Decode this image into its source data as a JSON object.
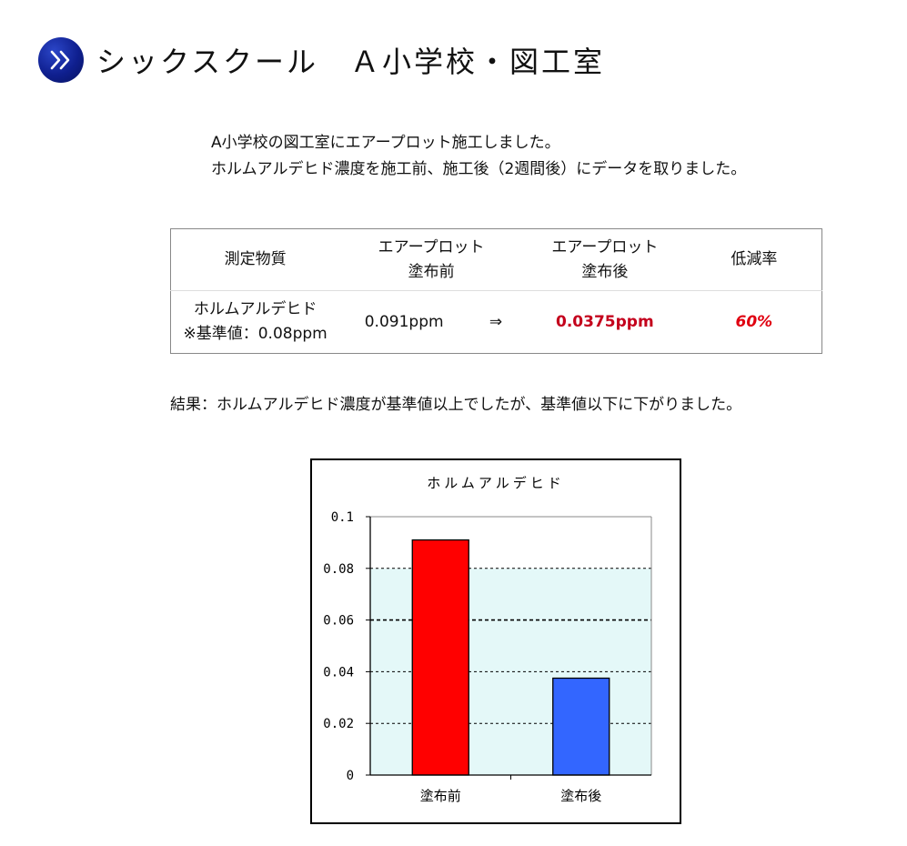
{
  "header": {
    "icon": "double-chevron-right-icon",
    "title": "シックスクール　Ａ小学校・図工室"
  },
  "intro": {
    "line1": "A小学校の図工室にエアープロット施工しました。",
    "line2": "ホルムアルデヒド濃度を施工前、施工後（2週間後）にデータを取りました。"
  },
  "table": {
    "headers": {
      "substance": "測定物質",
      "before_line1": "エアープロット",
      "before_line2": "塗布前",
      "after_line1": "エアープロット",
      "after_line2": "塗布後",
      "rate": "低減率"
    },
    "row": {
      "substance_line1": "ホルムアルデヒド",
      "substance_line2": "※基準値：0.08ppm",
      "before": "0.091ppm",
      "arrow": "⇒",
      "after": "0.0375ppm",
      "rate": "60%"
    },
    "colors": {
      "after": "#c4001c",
      "rate": "#e00010"
    }
  },
  "result": "結果：ホルムアルデヒド濃度が基準値以上でしたが、基準値以下に下がりました。",
  "chart_data": {
    "type": "bar",
    "title": "ホルムアルデヒド",
    "categories": [
      "塗布前",
      "塗布後"
    ],
    "values": [
      0.091,
      0.0375
    ],
    "bar_colors": [
      "#ff0000",
      "#3366ff"
    ],
    "ylim": [
      0,
      0.1
    ],
    "yticks": [
      "0",
      "0.02",
      "0.04",
      "0.06",
      "0.08",
      "0.1"
    ],
    "ytick_values": [
      0,
      0.02,
      0.04,
      0.06,
      0.08,
      0.1
    ],
    "reference_value": 0.08,
    "reference_band_color": "#e4f8f8",
    "grid": true,
    "xlabel": "",
    "ylabel": ""
  }
}
